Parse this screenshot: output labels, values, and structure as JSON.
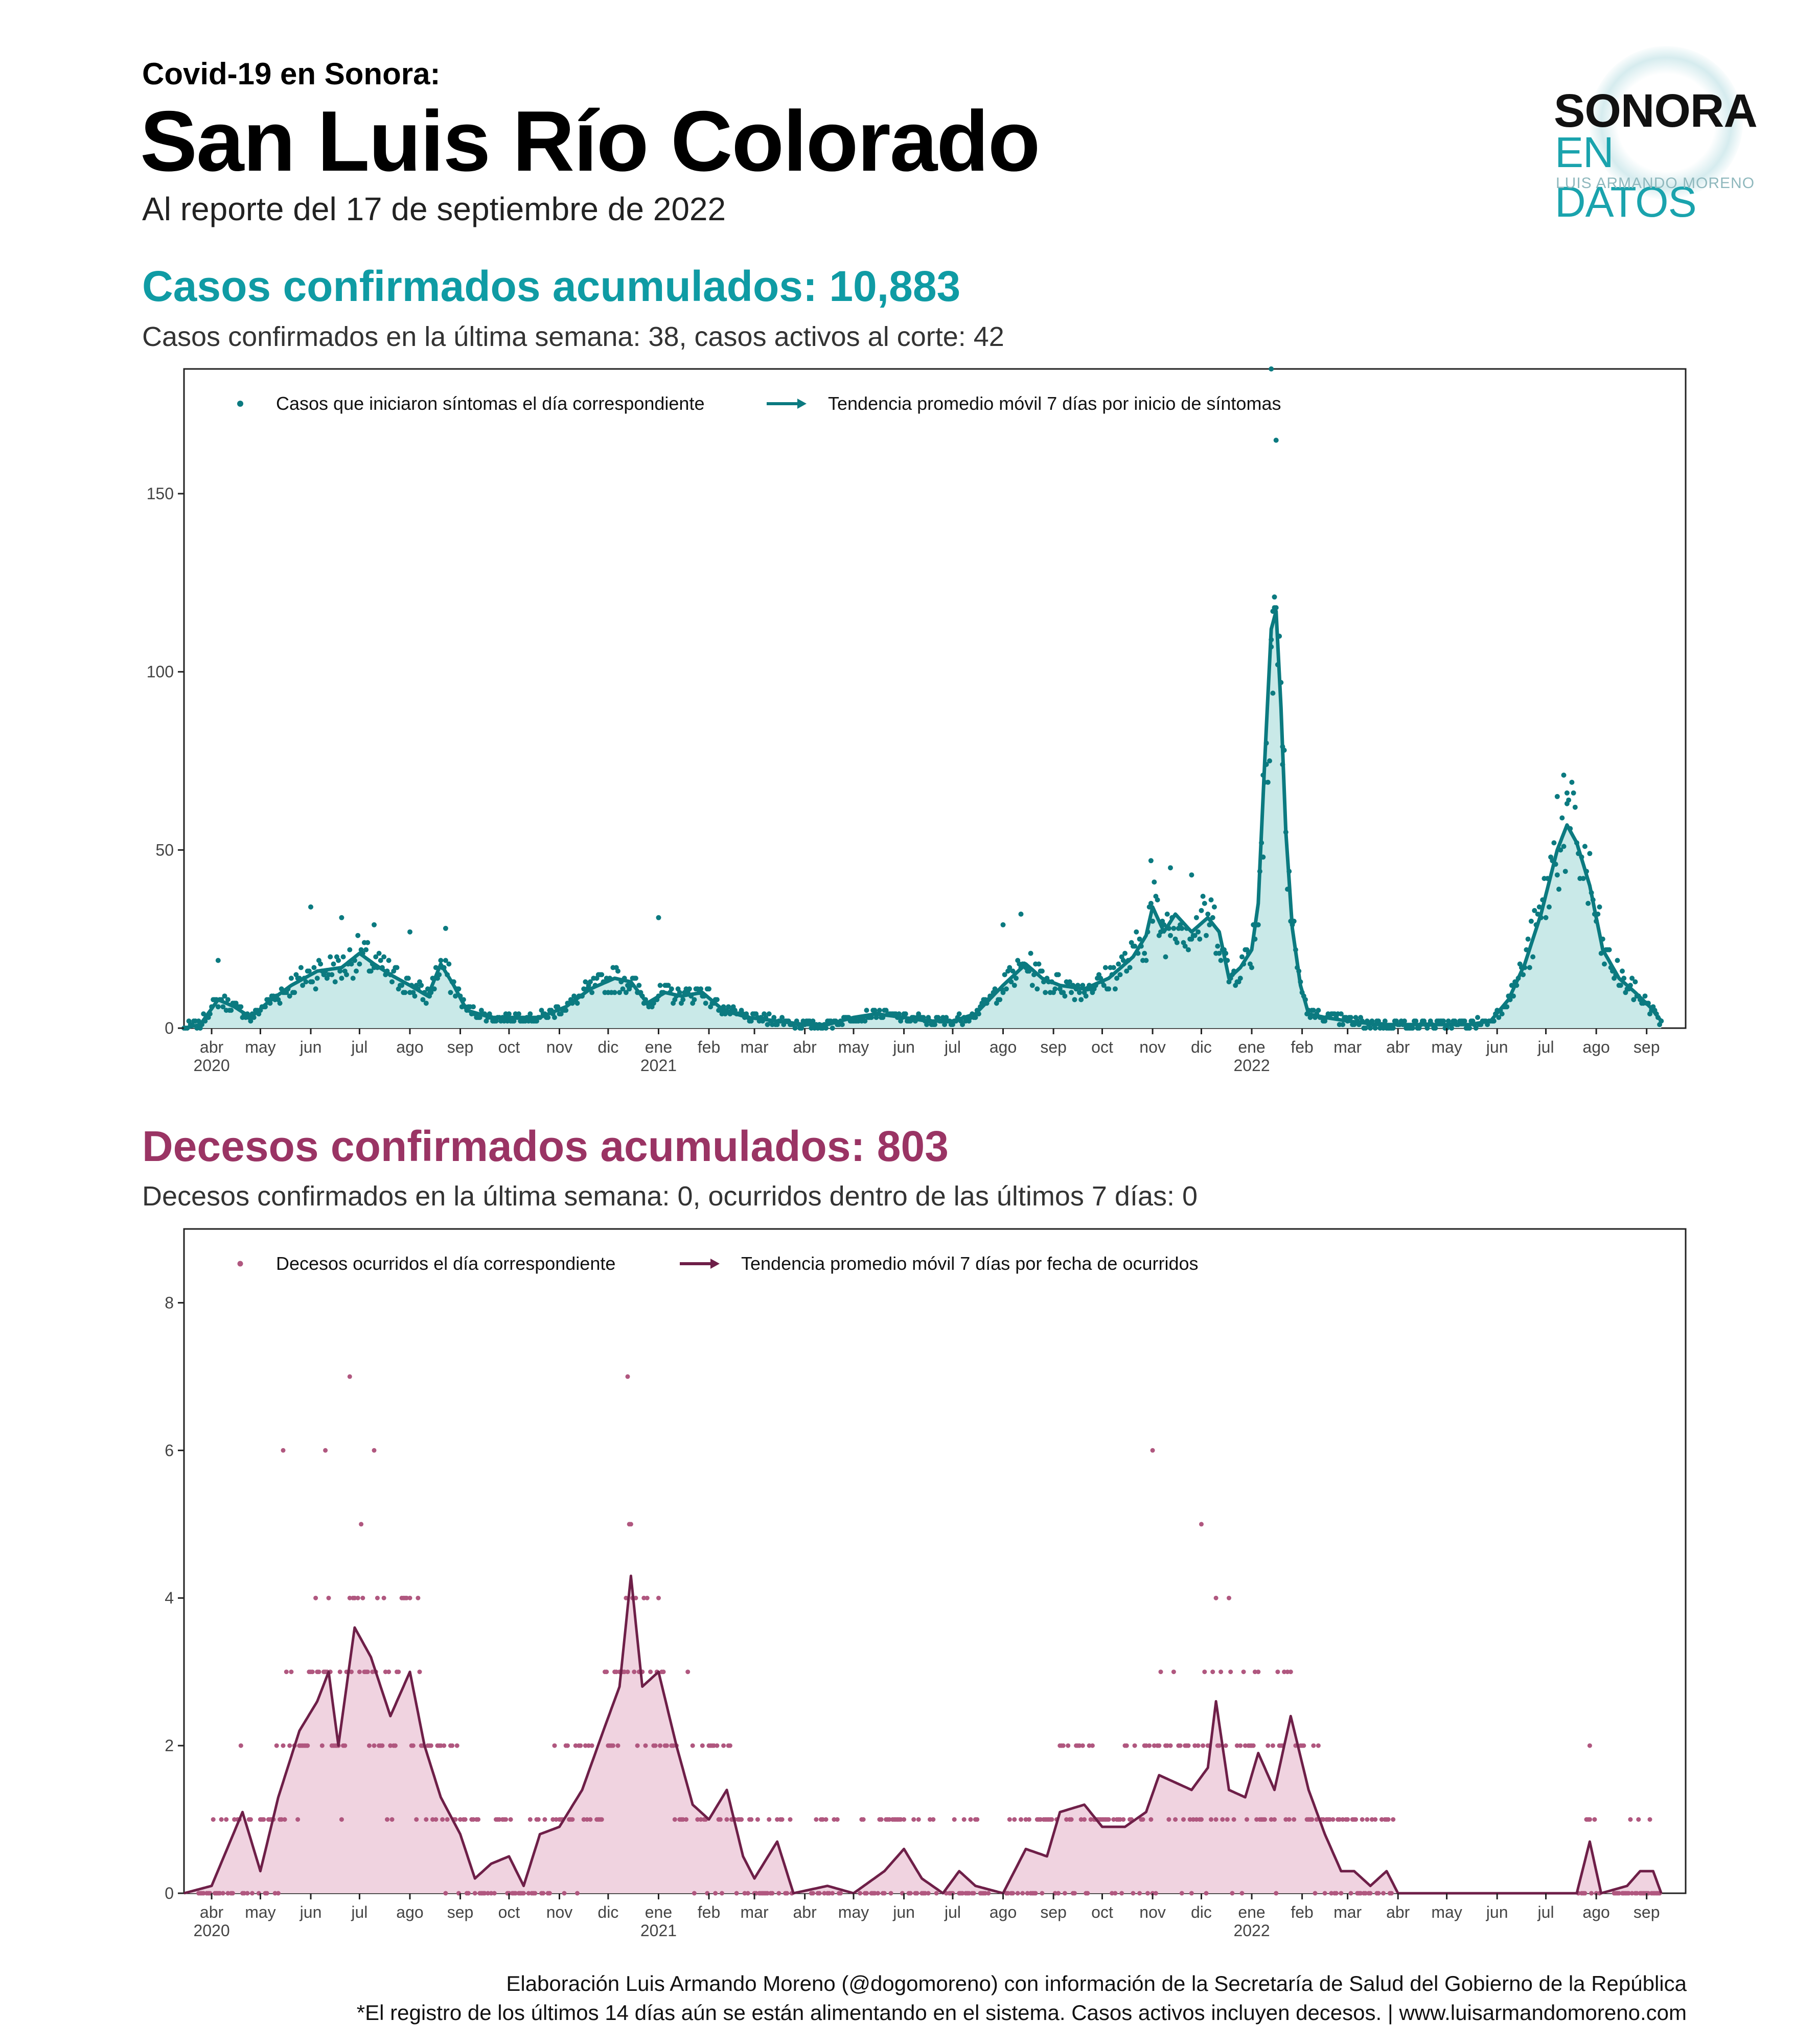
{
  "header": {
    "kicker": "Covid-19  en Sonora:",
    "title": "San Luis Río Colorado",
    "subtitle": "Al reporte del 17 de septiembre de 2022"
  },
  "logo": {
    "line1": "SONORA",
    "line2": "EN DATOS",
    "line3": "LUIS ARMANDO MORENO"
  },
  "cases": {
    "title": "Casos confirmados acumulados: 10,883",
    "subtitle": "Casos confirmados en la última semana: 38, casos activos al corte: 42"
  },
  "deaths": {
    "title": "Decesos confirmados acumulados: 803",
    "subtitle": "Decesos confirmados en la última semana: 0, ocurridos dentro de las últimos 7 días: 0"
  },
  "footer": {
    "line1": "Elaboración Luis Armando Moreno (@dogomoreno) con información de la Secretaría de Salud del Gobierno de la República",
    "line2": "*El registro de los últimos 14 días aún se están alimentando en el sistema. Casos activos incluyen decesos. | www.luisarmandomoreno.com"
  },
  "colors": {
    "cases_line": "#0b7a80",
    "cases_fill": "#c9e9e8",
    "cases_point": "#0b7a80",
    "deaths_line": "#6e1f48",
    "deaths_fill": "#f0d3e0",
    "deaths_point": "#b0577f",
    "cases_title": "#0f9ba4",
    "deaths_title": "#9a3464"
  },
  "chart_data": [
    {
      "type": "area",
      "title": "Casos confirmados acumulados: 10,883",
      "ylabel": "",
      "ylim": [
        0,
        185
      ],
      "yticks": [
        0,
        50,
        100,
        150
      ],
      "x_start": "2020-03-15",
      "x_end": "2022-09-25",
      "xticks": [
        {
          "date": "2020-04-01",
          "label": "abr",
          "year": "2020"
        },
        {
          "date": "2020-05-01",
          "label": "may",
          "year": ""
        },
        {
          "date": "2020-06-01",
          "label": "jun",
          "year": ""
        },
        {
          "date": "2020-07-01",
          "label": "jul",
          "year": ""
        },
        {
          "date": "2020-08-01",
          "label": "ago",
          "year": ""
        },
        {
          "date": "2020-09-01",
          "label": "sep",
          "year": ""
        },
        {
          "date": "2020-10-01",
          "label": "oct",
          "year": ""
        },
        {
          "date": "2020-11-01",
          "label": "nov",
          "year": ""
        },
        {
          "date": "2020-12-01",
          "label": "dic",
          "year": ""
        },
        {
          "date": "2021-01-01",
          "label": "ene",
          "year": "2021"
        },
        {
          "date": "2021-02-01",
          "label": "feb",
          "year": ""
        },
        {
          "date": "2021-03-01",
          "label": "mar",
          "year": ""
        },
        {
          "date": "2021-04-01",
          "label": "abr",
          "year": ""
        },
        {
          "date": "2021-05-01",
          "label": "may",
          "year": ""
        },
        {
          "date": "2021-06-01",
          "label": "jun",
          "year": ""
        },
        {
          "date": "2021-07-01",
          "label": "jul",
          "year": ""
        },
        {
          "date": "2021-08-01",
          "label": "ago",
          "year": ""
        },
        {
          "date": "2021-09-01",
          "label": "sep",
          "year": ""
        },
        {
          "date": "2021-10-01",
          "label": "oct",
          "year": ""
        },
        {
          "date": "2021-11-01",
          "label": "nov",
          "year": ""
        },
        {
          "date": "2021-12-01",
          "label": "dic",
          "year": ""
        },
        {
          "date": "2022-01-01",
          "label": "ene",
          "year": "2022"
        },
        {
          "date": "2022-02-01",
          "label": "feb",
          "year": ""
        },
        {
          "date": "2022-03-01",
          "label": "mar",
          "year": ""
        },
        {
          "date": "2022-04-01",
          "label": "abr",
          "year": ""
        },
        {
          "date": "2022-05-01",
          "label": "may",
          "year": ""
        },
        {
          "date": "2022-06-01",
          "label": "jun",
          "year": ""
        },
        {
          "date": "2022-07-01",
          "label": "jul",
          "year": ""
        },
        {
          "date": "2022-08-01",
          "label": "ago",
          "year": ""
        },
        {
          "date": "2022-09-01",
          "label": "sep",
          "year": ""
        }
      ],
      "legend": {
        "points": "Casos que iniciaron síntomas el día correspondiente",
        "line": "Tendencia promedio móvil 7 días por inicio de síntomas",
        "position": "top-left"
      },
      "trend": [
        [
          "2020-03-15",
          0
        ],
        [
          "2020-03-25",
          1
        ],
        [
          "2020-04-05",
          8
        ],
        [
          "2020-04-15",
          6
        ],
        [
          "2020-04-25",
          3
        ],
        [
          "2020-05-05",
          7
        ],
        [
          "2020-05-20",
          12
        ],
        [
          "2020-06-05",
          16
        ],
        [
          "2020-06-20",
          17
        ],
        [
          "2020-07-01",
          21
        ],
        [
          "2020-07-10",
          18
        ],
        [
          "2020-07-20",
          15
        ],
        [
          "2020-08-01",
          12
        ],
        [
          "2020-08-12",
          9
        ],
        [
          "2020-08-20",
          18
        ],
        [
          "2020-08-28",
          12
        ],
        [
          "2020-09-05",
          5
        ],
        [
          "2020-09-20",
          3
        ],
        [
          "2020-10-05",
          3
        ],
        [
          "2020-10-20",
          3
        ],
        [
          "2020-11-05",
          6
        ],
        [
          "2020-11-20",
          11
        ],
        [
          "2020-12-05",
          14
        ],
        [
          "2020-12-15",
          13
        ],
        [
          "2020-12-25",
          7
        ],
        [
          "2021-01-05",
          10
        ],
        [
          "2021-01-15",
          9
        ],
        [
          "2021-01-28",
          10
        ],
        [
          "2021-02-10",
          5
        ],
        [
          "2021-02-25",
          3
        ],
        [
          "2021-03-15",
          2
        ],
        [
          "2021-04-01",
          1
        ],
        [
          "2021-04-15",
          1
        ],
        [
          "2021-05-01",
          3
        ],
        [
          "2021-05-15",
          4
        ],
        [
          "2021-06-01",
          3
        ],
        [
          "2021-06-15",
          2
        ],
        [
          "2021-07-01",
          2
        ],
        [
          "2021-07-15",
          4
        ],
        [
          "2021-08-01",
          12
        ],
        [
          "2021-08-15",
          18
        ],
        [
          "2021-08-25",
          14
        ],
        [
          "2021-09-05",
          12
        ],
        [
          "2021-09-20",
          11
        ],
        [
          "2021-10-05",
          14
        ],
        [
          "2021-10-20",
          20
        ],
        [
          "2021-10-28",
          26
        ],
        [
          "2021-11-01",
          34
        ],
        [
          "2021-11-08",
          27
        ],
        [
          "2021-11-15",
          32
        ],
        [
          "2021-11-25",
          27
        ],
        [
          "2021-12-05",
          31
        ],
        [
          "2021-12-12",
          27
        ],
        [
          "2021-12-18",
          14
        ],
        [
          "2021-12-25",
          17
        ],
        [
          "2022-01-01",
          22
        ],
        [
          "2022-01-05",
          35
        ],
        [
          "2022-01-09",
          75
        ],
        [
          "2022-01-13",
          112
        ],
        [
          "2022-01-16",
          117
        ],
        [
          "2022-01-19",
          90
        ],
        [
          "2022-01-22",
          55
        ],
        [
          "2022-01-26",
          28
        ],
        [
          "2022-01-31",
          12
        ],
        [
          "2022-02-05",
          4
        ],
        [
          "2022-02-15",
          3
        ],
        [
          "2022-03-01",
          2
        ],
        [
          "2022-03-20",
          1
        ],
        [
          "2022-04-15",
          1
        ],
        [
          "2022-05-15",
          1
        ],
        [
          "2022-05-28",
          2
        ],
        [
          "2022-06-08",
          8
        ],
        [
          "2022-06-18",
          18
        ],
        [
          "2022-06-28",
          32
        ],
        [
          "2022-07-08",
          50
        ],
        [
          "2022-07-14",
          57
        ],
        [
          "2022-07-20",
          52
        ],
        [
          "2022-07-28",
          40
        ],
        [
          "2022-08-05",
          22
        ],
        [
          "2022-08-15",
          14
        ],
        [
          "2022-08-25",
          10
        ],
        [
          "2022-09-03",
          6
        ],
        [
          "2022-09-10",
          2
        ]
      ],
      "highlights": [
        [
          "2022-01-13",
          185
        ],
        [
          "2022-01-16",
          165
        ],
        [
          "2022-01-15",
          121
        ],
        [
          "2022-01-14",
          117
        ],
        [
          "2022-01-13",
          107
        ],
        [
          "2022-01-20",
          79
        ],
        [
          "2022-01-10",
          74
        ],
        [
          "2022-01-08",
          48
        ],
        [
          "2022-07-12",
          71
        ],
        [
          "2022-07-08",
          65
        ],
        [
          "2022-07-14",
          63
        ],
        [
          "2021-10-31",
          47
        ],
        [
          "2021-11-12",
          45
        ],
        [
          "2021-11-25",
          43
        ],
        [
          "2020-06-01",
          34
        ],
        [
          "2021-01-01",
          31
        ],
        [
          "2020-06-20",
          31
        ],
        [
          "2021-08-12",
          32
        ],
        [
          "2021-08-01",
          29
        ],
        [
          "2020-08-23",
          28
        ],
        [
          "2020-08-01",
          27
        ],
        [
          "2020-07-10",
          29
        ],
        [
          "2020-04-05",
          19
        ]
      ]
    },
    {
      "type": "area",
      "title": "Decesos confirmados acumulados: 803",
      "ylabel": "",
      "ylim": [
        0,
        9
      ],
      "yticks": [
        0,
        2,
        4,
        6,
        8
      ],
      "x_start": "2020-03-15",
      "x_end": "2022-09-25",
      "legend": {
        "points": "Decesos ocurridos el día correspondiente",
        "line": "Tendencia promedio móvil 7 días por fecha de ocurridos",
        "position": "top-left"
      },
      "trend": [
        [
          "2020-03-15",
          0
        ],
        [
          "2020-04-01",
          0.1
        ],
        [
          "2020-04-20",
          1.1
        ],
        [
          "2020-05-01",
          0.3
        ],
        [
          "2020-05-12",
          1.3
        ],
        [
          "2020-05-25",
          2.2
        ],
        [
          "2020-06-05",
          2.6
        ],
        [
          "2020-06-12",
          3.0
        ],
        [
          "2020-06-18",
          2.0
        ],
        [
          "2020-06-28",
          3.6
        ],
        [
          "2020-07-08",
          3.2
        ],
        [
          "2020-07-20",
          2.4
        ],
        [
          "2020-08-01",
          3.0
        ],
        [
          "2020-08-10",
          2.0
        ],
        [
          "2020-08-20",
          1.3
        ],
        [
          "2020-09-01",
          0.8
        ],
        [
          "2020-09-10",
          0.2
        ],
        [
          "2020-09-20",
          0.4
        ],
        [
          "2020-10-01",
          0.5
        ],
        [
          "2020-10-10",
          0.1
        ],
        [
          "2020-10-20",
          0.8
        ],
        [
          "2020-11-01",
          0.9
        ],
        [
          "2020-11-15",
          1.4
        ],
        [
          "2020-11-28",
          2.2
        ],
        [
          "2020-12-08",
          2.8
        ],
        [
          "2020-12-15",
          4.3
        ],
        [
          "2020-12-22",
          2.8
        ],
        [
          "2021-01-01",
          3.0
        ],
        [
          "2021-01-12",
          2.0
        ],
        [
          "2021-01-22",
          1.2
        ],
        [
          "2021-02-01",
          1.0
        ],
        [
          "2021-02-12",
          1.4
        ],
        [
          "2021-02-22",
          0.5
        ],
        [
          "2021-03-01",
          0.2
        ],
        [
          "2021-03-15",
          0.7
        ],
        [
          "2021-03-25",
          0.0
        ],
        [
          "2021-04-15",
          0.1
        ],
        [
          "2021-05-01",
          0.0
        ],
        [
          "2021-05-20",
          0.3
        ],
        [
          "2021-06-01",
          0.6
        ],
        [
          "2021-06-12",
          0.2
        ],
        [
          "2021-06-25",
          0.0
        ],
        [
          "2021-07-05",
          0.3
        ],
        [
          "2021-07-15",
          0.1
        ],
        [
          "2021-08-01",
          0.0
        ],
        [
          "2021-08-15",
          0.6
        ],
        [
          "2021-08-28",
          0.5
        ],
        [
          "2021-09-05",
          1.1
        ],
        [
          "2021-09-20",
          1.2
        ],
        [
          "2021-10-01",
          0.9
        ],
        [
          "2021-10-15",
          0.9
        ],
        [
          "2021-10-28",
          1.1
        ],
        [
          "2021-11-05",
          1.6
        ],
        [
          "2021-11-15",
          1.5
        ],
        [
          "2021-11-25",
          1.4
        ],
        [
          "2021-12-05",
          1.7
        ],
        [
          "2021-12-10",
          2.6
        ],
        [
          "2021-12-18",
          1.4
        ],
        [
          "2021-12-28",
          1.3
        ],
        [
          "2022-01-05",
          1.9
        ],
        [
          "2022-01-15",
          1.4
        ],
        [
          "2022-01-25",
          2.4
        ],
        [
          "2022-02-05",
          1.4
        ],
        [
          "2022-02-15",
          0.8
        ],
        [
          "2022-02-25",
          0.3
        ],
        [
          "2022-03-05",
          0.3
        ],
        [
          "2022-03-15",
          0.1
        ],
        [
          "2022-03-25",
          0.3
        ],
        [
          "2022-04-01",
          0.0
        ],
        [
          "2022-07-20",
          0.0
        ],
        [
          "2022-07-28",
          0.7
        ],
        [
          "2022-08-04",
          0.0
        ],
        [
          "2022-08-20",
          0.1
        ],
        [
          "2022-08-28",
          0.3
        ],
        [
          "2022-09-05",
          0.3
        ],
        [
          "2022-09-10",
          0.0
        ]
      ],
      "highlights": [
        [
          "2020-06-25",
          7
        ],
        [
          "2020-12-13",
          7
        ],
        [
          "2020-05-15",
          6
        ],
        [
          "2020-06-10",
          6
        ],
        [
          "2020-07-10",
          6
        ],
        [
          "2021-11-01",
          6
        ],
        [
          "2021-12-01",
          5
        ],
        [
          "2021-12-10",
          4
        ],
        [
          "2021-12-18",
          4
        ],
        [
          "2022-07-28",
          2
        ],
        [
          "2022-09-03",
          1
        ]
      ]
    }
  ]
}
